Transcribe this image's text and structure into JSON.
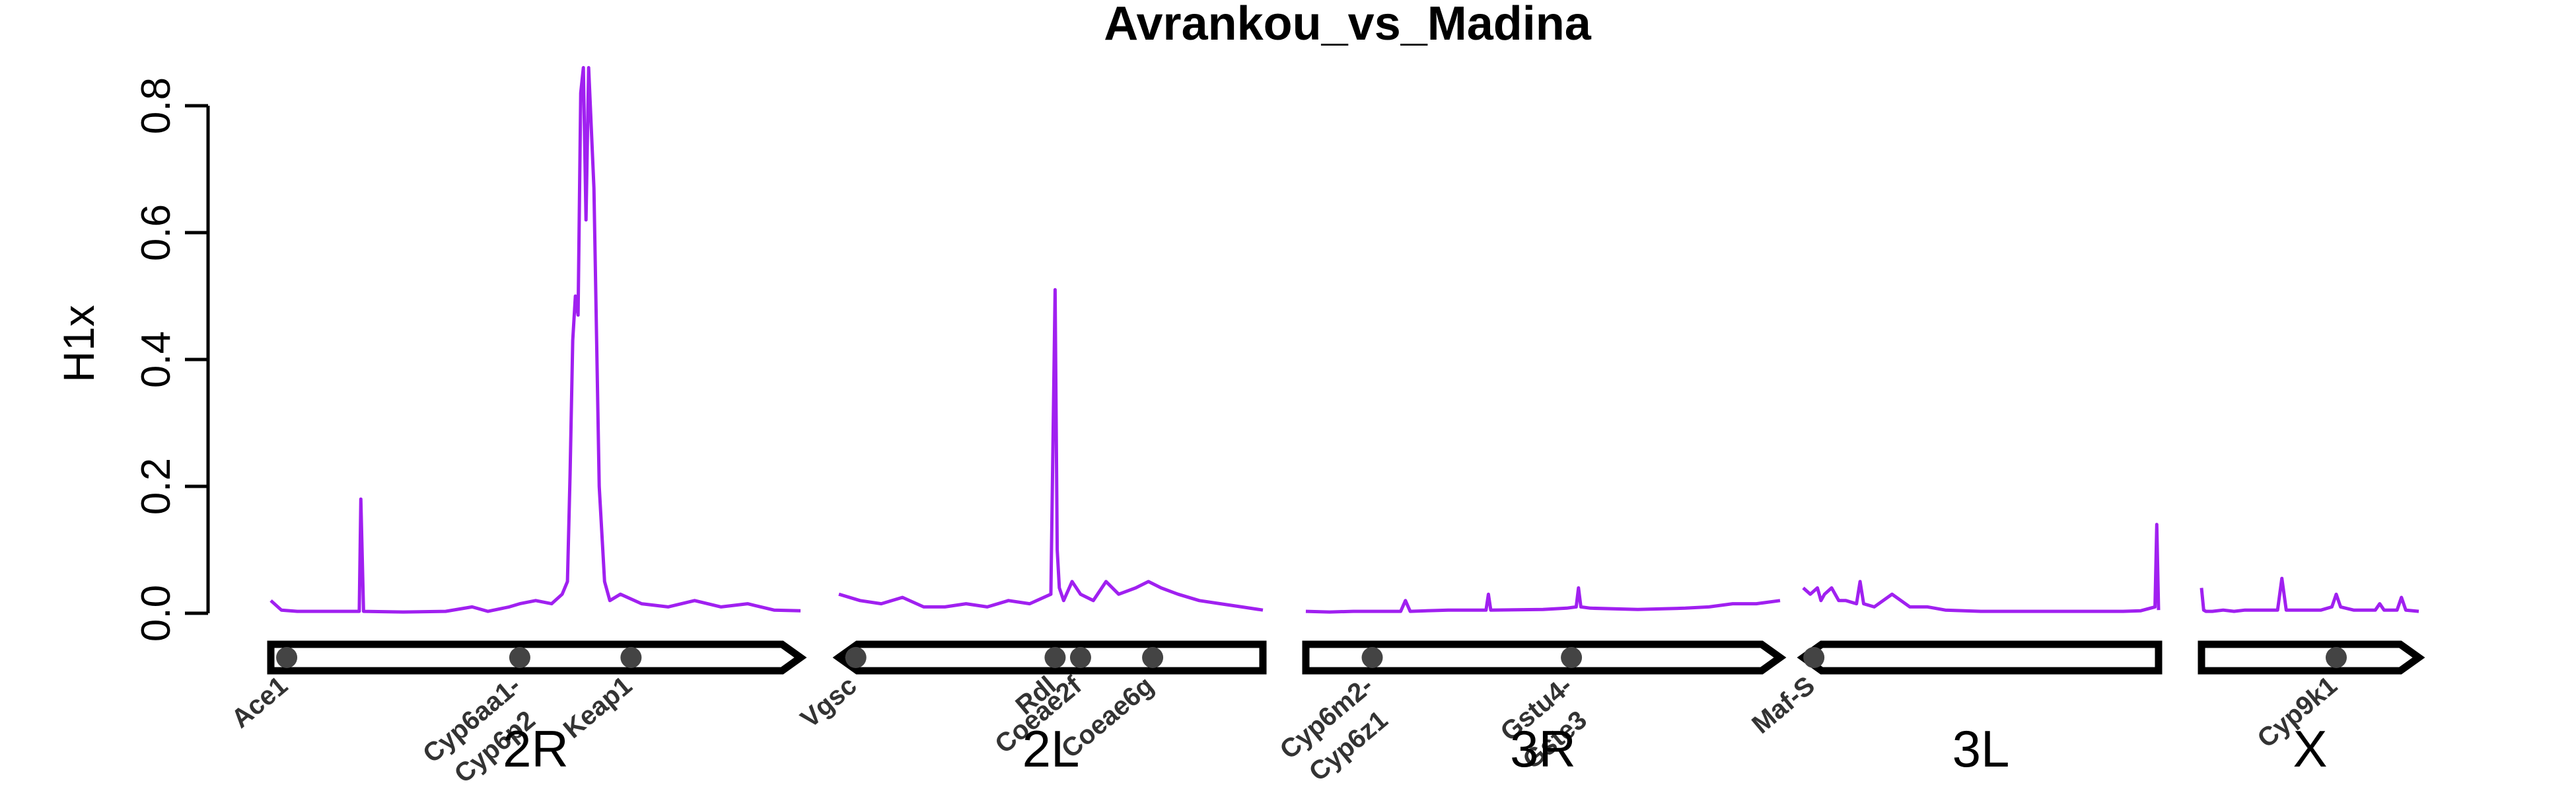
{
  "chart_data": {
    "type": "line",
    "title": "Avrankou_vs_Madina",
    "xlabel": "",
    "ylabel": "H1x",
    "ylim": [
      0,
      0.85
    ],
    "yticks": [
      0.0,
      0.2,
      0.4,
      0.6,
      0.8
    ],
    "ytick_labels": [
      "0.0",
      "0.2",
      "0.4",
      "0.6",
      "0.8"
    ],
    "grid": false,
    "line_color": "#A020F0",
    "chromosomes": [
      {
        "name": "2R",
        "shape": "right-centromere",
        "x": [
          0.0,
          0.02,
          0.05,
          0.15,
          0.167,
          0.17,
          0.175,
          0.25,
          0.33,
          0.38,
          0.41,
          0.45,
          0.47,
          0.5,
          0.53,
          0.55,
          0.56,
          0.565,
          0.57,
          0.575,
          0.58,
          0.585,
          0.59,
          0.595,
          0.6,
          0.61,
          0.62,
          0.63,
          0.64,
          0.66,
          0.7,
          0.75,
          0.8,
          0.85,
          0.9,
          0.95,
          1.0
        ],
        "y": [
          0.02,
          0.005,
          0.003,
          0.003,
          0.003,
          0.18,
          0.003,
          0.002,
          0.003,
          0.01,
          0.003,
          0.01,
          0.015,
          0.02,
          0.015,
          0.03,
          0.05,
          0.22,
          0.43,
          0.5,
          0.47,
          0.82,
          0.86,
          0.62,
          0.86,
          0.67,
          0.2,
          0.05,
          0.02,
          0.03,
          0.015,
          0.01,
          0.02,
          0.01,
          0.015,
          0.005,
          0.004
        ]
      },
      {
        "name": "2L",
        "shape": "left-centromere",
        "x": [
          0.0,
          0.05,
          0.1,
          0.15,
          0.2,
          0.25,
          0.3,
          0.35,
          0.4,
          0.45,
          0.5,
          0.51,
          0.515,
          0.52,
          0.53,
          0.55,
          0.57,
          0.6,
          0.63,
          0.66,
          0.7,
          0.73,
          0.76,
          0.8,
          0.85,
          0.9,
          0.95,
          1.0
        ],
        "y": [
          0.03,
          0.02,
          0.015,
          0.025,
          0.01,
          0.01,
          0.015,
          0.01,
          0.02,
          0.015,
          0.03,
          0.51,
          0.1,
          0.04,
          0.02,
          0.05,
          0.03,
          0.02,
          0.05,
          0.03,
          0.04,
          0.05,
          0.04,
          0.03,
          0.02,
          0.015,
          0.01,
          0.005
        ]
      },
      {
        "name": "3R",
        "shape": "right-centromere",
        "x": [
          0.0,
          0.05,
          0.1,
          0.2,
          0.21,
          0.22,
          0.3,
          0.38,
          0.385,
          0.39,
          0.5,
          0.55,
          0.57,
          0.575,
          0.58,
          0.6,
          0.7,
          0.8,
          0.85,
          0.9,
          0.95,
          1.0
        ],
        "y": [
          0.003,
          0.002,
          0.003,
          0.003,
          0.02,
          0.003,
          0.005,
          0.005,
          0.03,
          0.005,
          0.006,
          0.008,
          0.01,
          0.04,
          0.01,
          0.008,
          0.006,
          0.008,
          0.01,
          0.015,
          0.015,
          0.02
        ]
      },
      {
        "name": "3L",
        "shape": "left-centromere",
        "x": [
          0.0,
          0.02,
          0.04,
          0.05,
          0.06,
          0.08,
          0.1,
          0.12,
          0.15,
          0.16,
          0.17,
          0.2,
          0.25,
          0.3,
          0.35,
          0.4,
          0.5,
          0.6,
          0.7,
          0.8,
          0.9,
          0.95,
          0.99,
          0.995,
          1.0
        ],
        "y": [
          0.04,
          0.03,
          0.04,
          0.02,
          0.03,
          0.04,
          0.02,
          0.02,
          0.015,
          0.05,
          0.015,
          0.01,
          0.03,
          0.01,
          0.01,
          0.005,
          0.003,
          0.003,
          0.003,
          0.003,
          0.003,
          0.004,
          0.01,
          0.14,
          0.005
        ]
      },
      {
        "name": "X",
        "shape": "arrow",
        "x": [
          0.0,
          0.01,
          0.02,
          0.05,
          0.1,
          0.15,
          0.2,
          0.35,
          0.37,
          0.39,
          0.45,
          0.55,
          0.6,
          0.62,
          0.64,
          0.7,
          0.8,
          0.82,
          0.84,
          0.9,
          0.92,
          0.94,
          1.0
        ],
        "y": [
          0.04,
          0.005,
          0.003,
          0.003,
          0.005,
          0.003,
          0.005,
          0.005,
          0.055,
          0.005,
          0.005,
          0.005,
          0.01,
          0.03,
          0.01,
          0.005,
          0.005,
          0.015,
          0.005,
          0.005,
          0.025,
          0.005,
          0.003
        ]
      }
    ],
    "genes": [
      {
        "name": "Ace1",
        "chrom": "2R",
        "pos": 0.03
      },
      {
        "name": "Cyp6aa1-",
        "chrom": "2R",
        "pos": 0.47
      },
      {
        "name": "Cyp6p2",
        "chrom": "2R",
        "pos": 0.47
      },
      {
        "name": "Keap1",
        "chrom": "2R",
        "pos": 0.68
      },
      {
        "name": "Vgsc",
        "chrom": "2L",
        "pos": 0.04
      },
      {
        "name": "Rdl",
        "chrom": "2L",
        "pos": 0.51
      },
      {
        "name": "Coeae2f",
        "chrom": "2L",
        "pos": 0.57
      },
      {
        "name": "Coeae6g",
        "chrom": "2L",
        "pos": 0.74
      },
      {
        "name": "Cyp6m2-",
        "chrom": "3R",
        "pos": 0.14
      },
      {
        "name": "Cyp6z1",
        "chrom": "3R",
        "pos": 0.14
      },
      {
        "name": "Gstu4-",
        "chrom": "3R",
        "pos": 0.56
      },
      {
        "name": "Gste3",
        "chrom": "3R",
        "pos": 0.56
      },
      {
        "name": "Maf-S",
        "chrom": "3L",
        "pos": 0.03
      },
      {
        "name": "Cyp9k1",
        "chrom": "X",
        "pos": 0.62
      }
    ]
  }
}
